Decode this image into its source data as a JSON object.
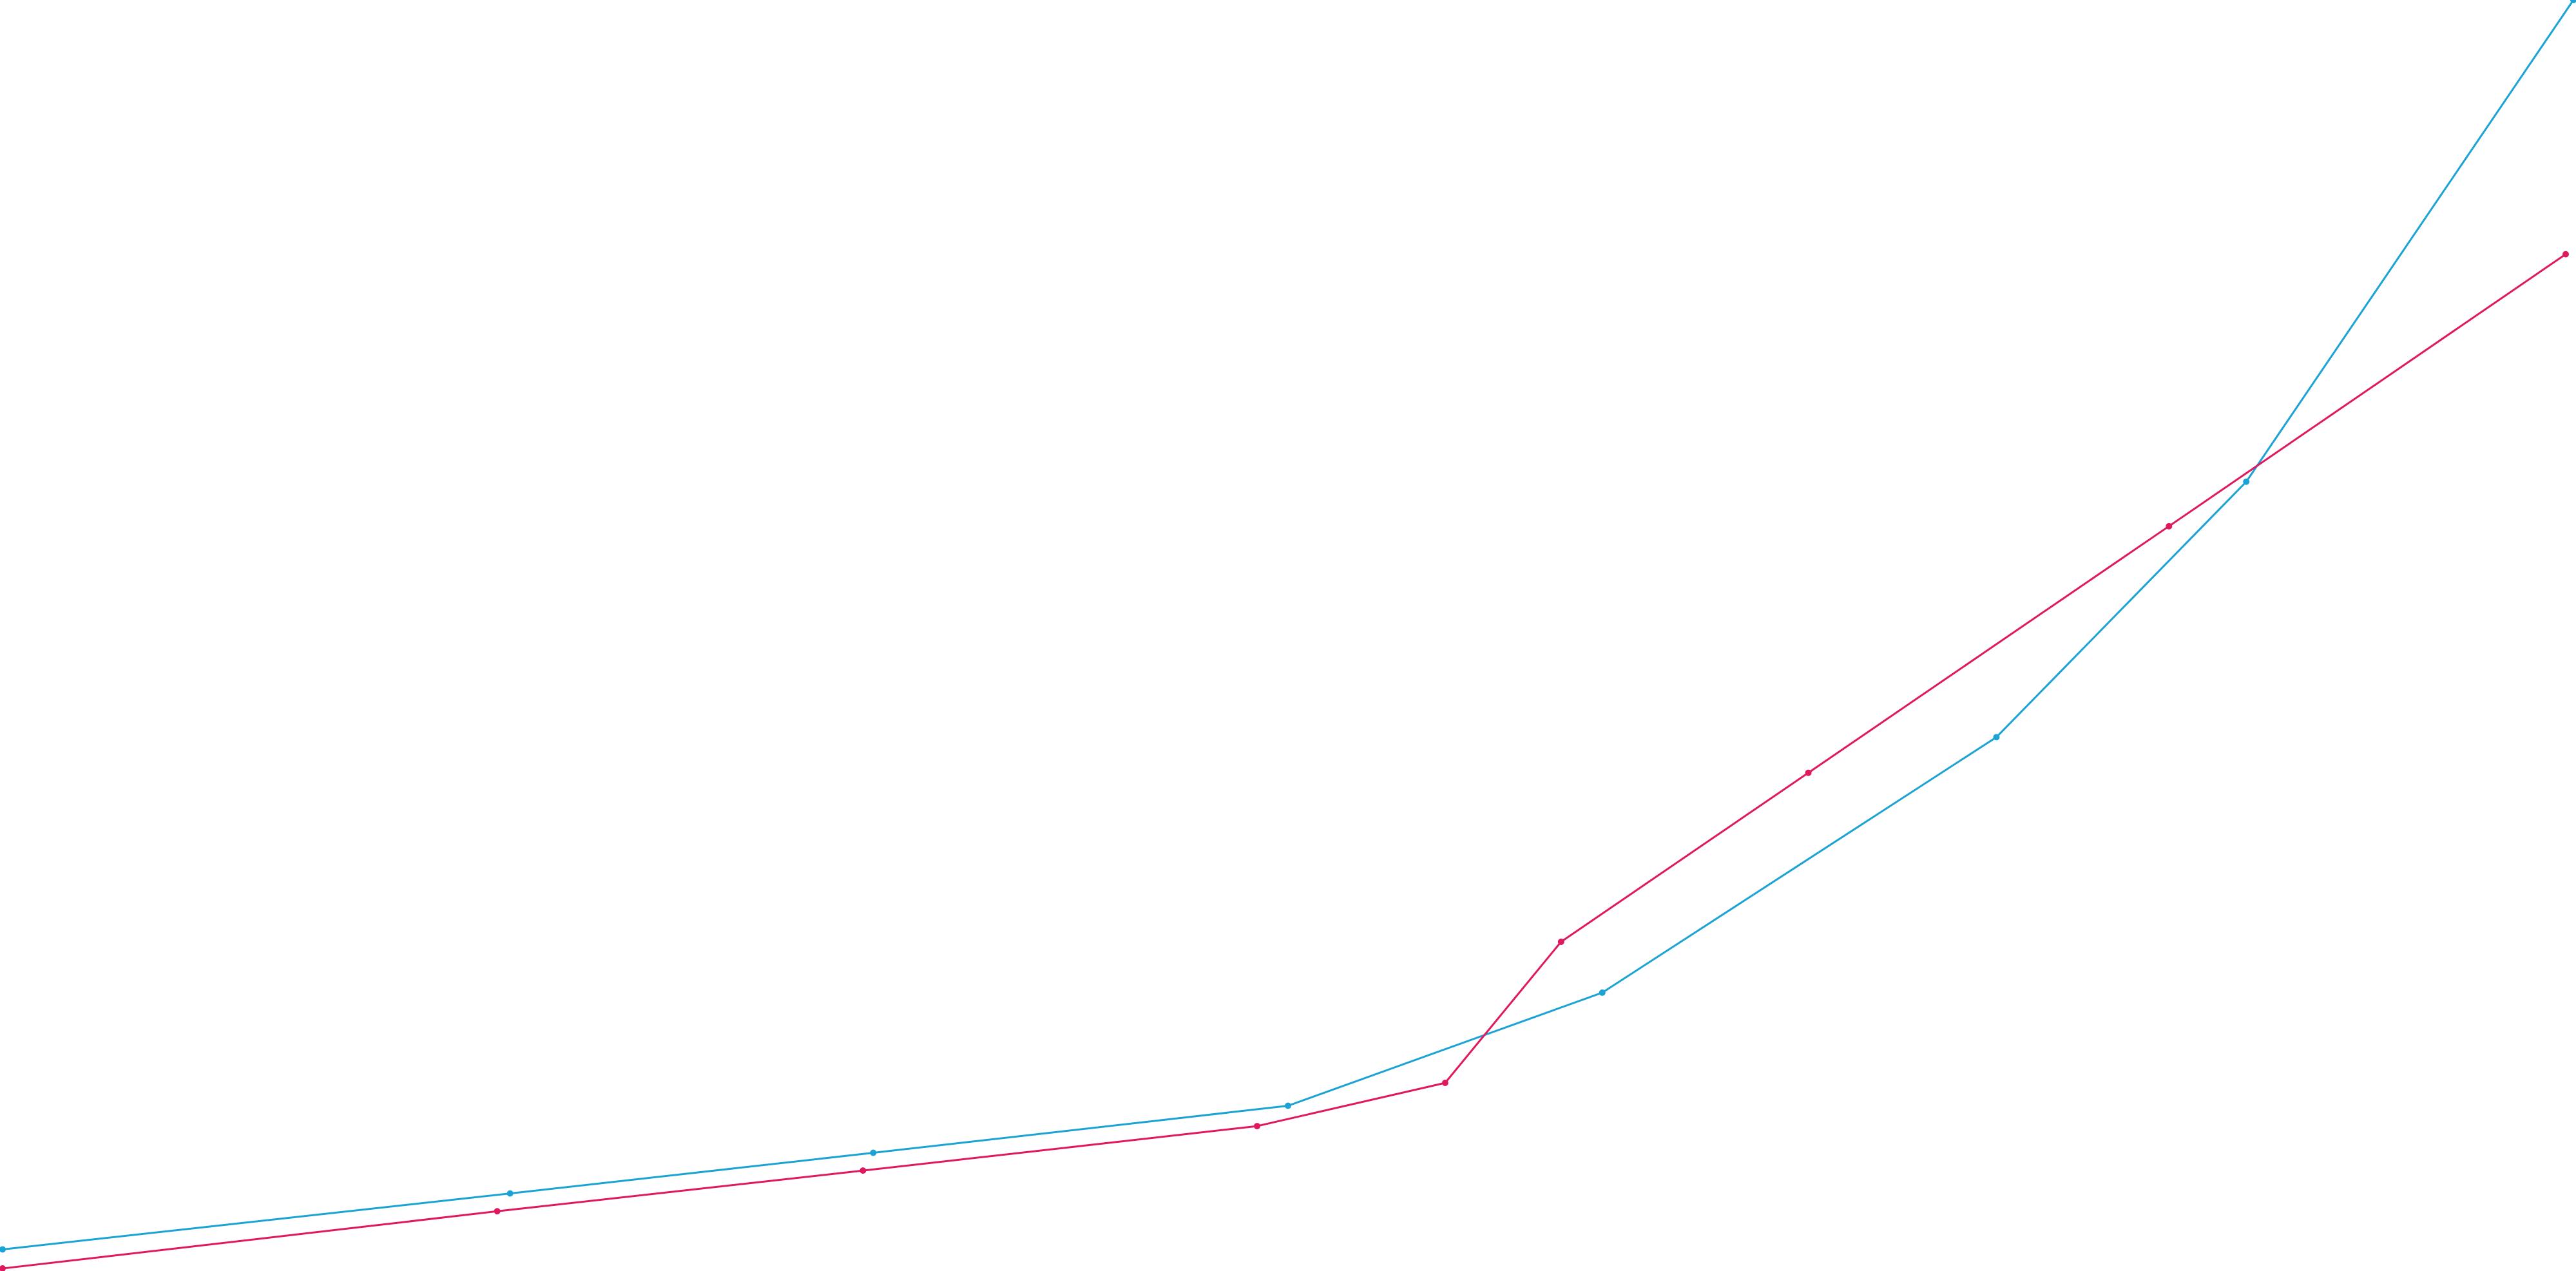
{
  "chart_data": {
    "type": "line",
    "title": "",
    "xlabel": "",
    "ylabel": "",
    "grid": false,
    "legend": "none",
    "xlim": [
      0,
      100
    ],
    "ylim": [
      0,
      100
    ],
    "series": [
      {
        "color": "#1aa3d4",
        "points": [
          [
            0.1,
            1.7
          ],
          [
            19.8,
            6.1
          ],
          [
            33.9,
            9.3
          ],
          [
            50.0,
            13.0
          ],
          [
            62.2,
            21.9
          ],
          [
            77.5,
            42.0
          ],
          [
            87.2,
            62.1
          ],
          [
            99.9,
            100.0
          ]
        ]
      },
      {
        "color": "#e0185f",
        "points": [
          [
            0.1,
            0.2
          ],
          [
            19.3,
            4.7
          ],
          [
            33.5,
            7.9
          ],
          [
            48.8,
            11.4
          ],
          [
            56.1,
            14.8
          ],
          [
            60.6,
            25.9
          ],
          [
            70.2,
            39.2
          ],
          [
            84.2,
            58.6
          ],
          [
            99.6,
            80.0
          ]
        ]
      }
    ]
  }
}
